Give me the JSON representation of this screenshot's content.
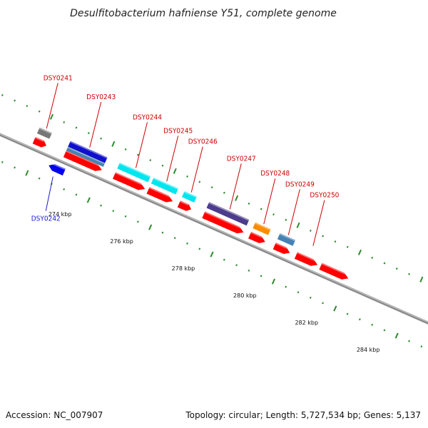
{
  "title": "Desulfitobacterium hafniense Y51, complete genome",
  "footer": {
    "accession": "Accession: NC_007907",
    "summary": "Topology: circular; Length: 5,727,534 bp; Genes: 5,137"
  },
  "colors": {
    "backbone": "#8a8a8a",
    "tick": "#2e8b2e",
    "forward_label": "#cc0000",
    "reverse_label": "#1a1acc"
  },
  "scale": {
    "unit": "kbp",
    "tick_labels": [
      {
        "kbp": 274,
        "text": "274 kbp"
      },
      {
        "kbp": 276,
        "text": "276 kbp"
      },
      {
        "kbp": 278,
        "text": "278 kbp"
      },
      {
        "kbp": 280,
        "text": "280 kbp"
      },
      {
        "kbp": 282,
        "text": "282 kbp"
      },
      {
        "kbp": 284,
        "text": "284 kbp"
      }
    ]
  },
  "genes": [
    {
      "id": "DSY0241",
      "strand": "+",
      "start": 272.4,
      "end": 272.8,
      "color": "#ff0000",
      "feature_color": "#777777"
    },
    {
      "id": "DSY0242",
      "strand": "-",
      "start": 273.1,
      "end": 273.6,
      "color": "#0000ee"
    },
    {
      "id": "DSY0243",
      "strand": "+",
      "start": 273.4,
      "end": 274.6,
      "color": "#ff0000",
      "feature_color": "#1010cc",
      "feature2_color": "#4682b4"
    },
    {
      "id": "DSY0244",
      "strand": "+",
      "start": 275.0,
      "end": 276.0,
      "color": "#ff0000",
      "feature_color": "#00e5ee"
    },
    {
      "id": "DSY0245",
      "strand": "+",
      "start": 276.1,
      "end": 276.9,
      "color": "#ff0000",
      "feature_color": "#00e5ee"
    },
    {
      "id": "DSY0246",
      "strand": "+",
      "start": 277.1,
      "end": 277.5,
      "color": "#ff0000",
      "feature_color": "#00e5ee"
    },
    {
      "id": "DSY0247",
      "strand": "+",
      "start": 277.9,
      "end": 279.2,
      "color": "#ff0000",
      "feature_color": "#4b3d8c"
    },
    {
      "id": "DSY0248",
      "strand": "+",
      "start": 279.4,
      "end": 279.9,
      "color": "#ff0000",
      "feature_color": "#ff8c00"
    },
    {
      "id": "DSY0249",
      "strand": "+",
      "start": 280.2,
      "end": 280.7,
      "color": "#ff0000",
      "feature_color": "#4682b4"
    },
    {
      "id": "DSY0250",
      "strand": "+",
      "start": 280.9,
      "end": 281.6,
      "color": "#ff0000"
    },
    {
      "id": "",
      "strand": "+",
      "start": 281.7,
      "end": 282.6,
      "color": "#ff0000"
    }
  ]
}
